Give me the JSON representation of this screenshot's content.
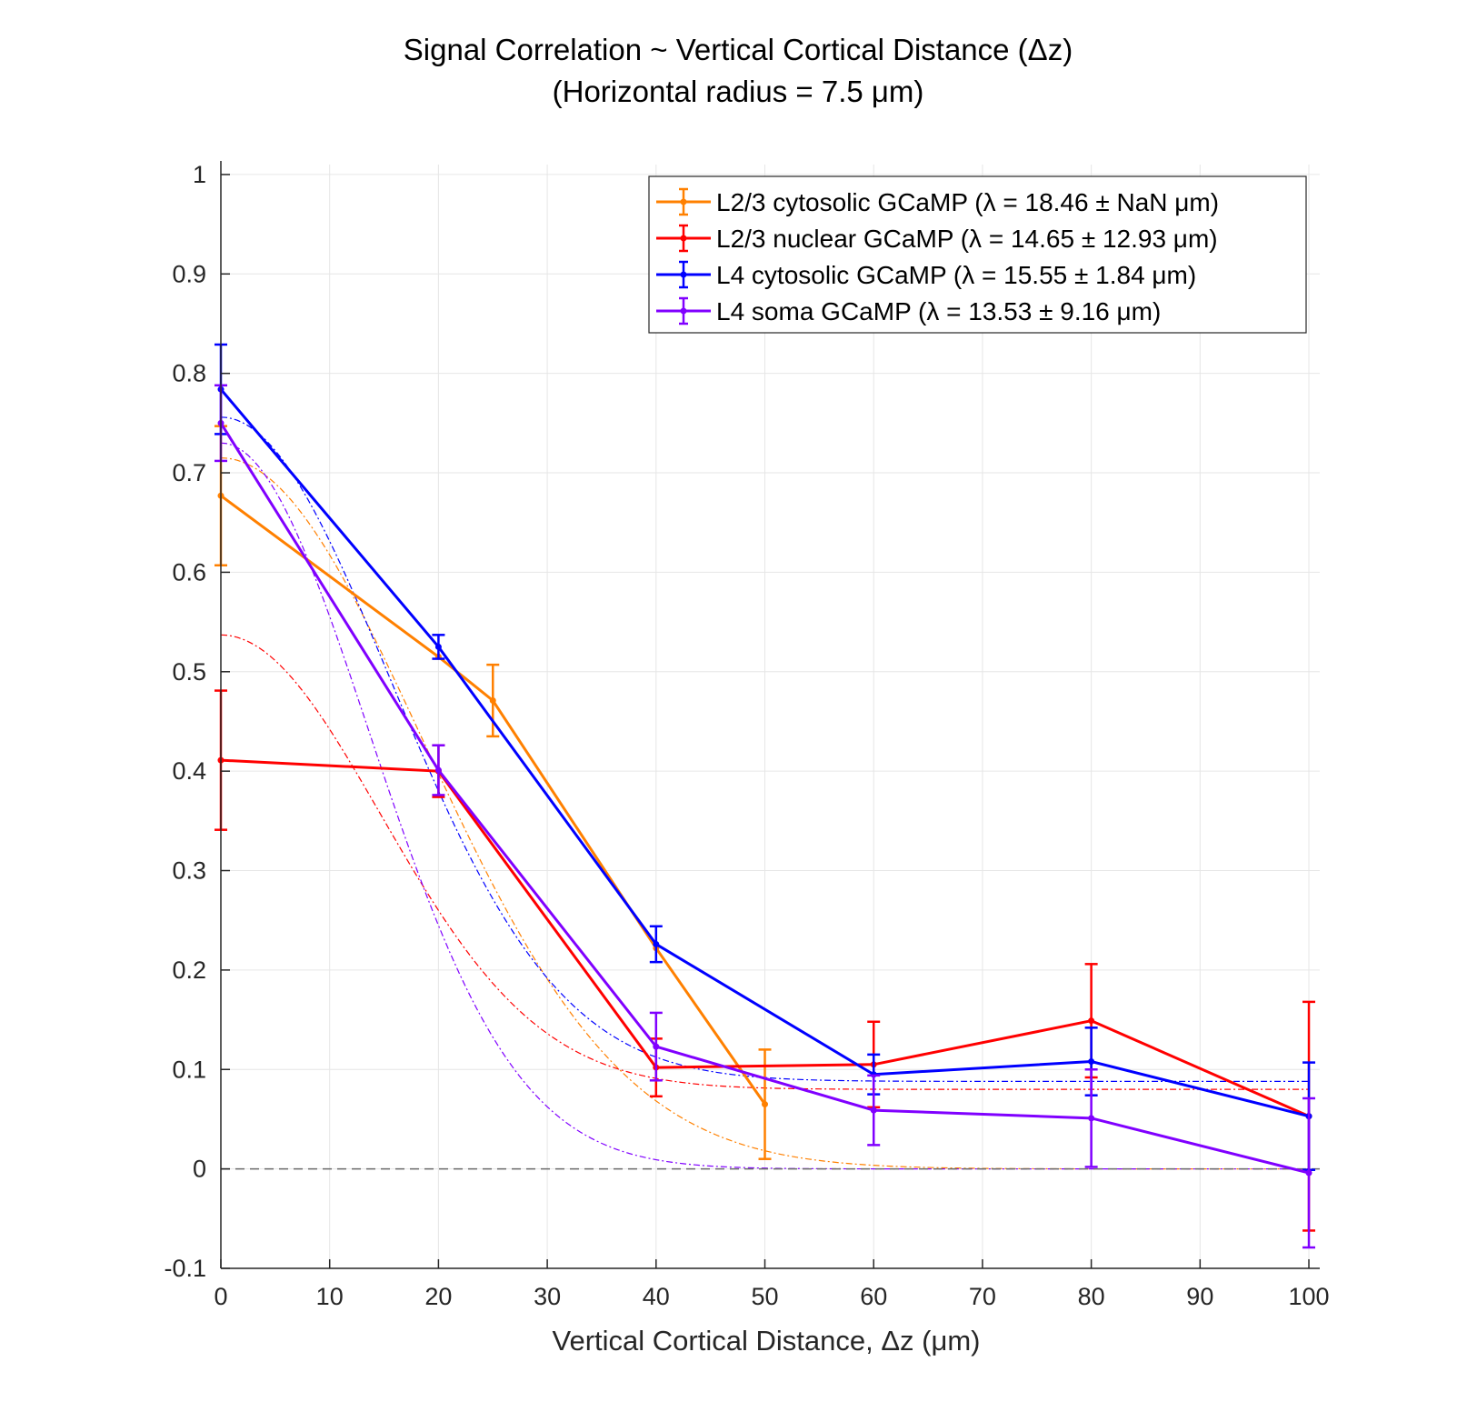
{
  "chart_data": {
    "type": "line",
    "title": "Signal Correlation ~ Vertical Cortical Distance (Δz)",
    "subtitle": "(Horizontal radius = 7.5 μm)",
    "xlabel": "Vertical Cortical Distance, Δz (μm)",
    "ylabel": "",
    "xlim": [
      0,
      101
    ],
    "ylim": [
      -0.1,
      1.01
    ],
    "xticks": [
      0,
      10,
      20,
      30,
      40,
      50,
      60,
      70,
      80,
      90,
      100
    ],
    "yticks": [
      -0.1,
      0,
      0.1,
      0.2,
      0.3,
      0.4,
      0.5,
      0.6,
      0.7,
      0.8,
      0.9,
      1
    ],
    "ytick_labels": [
      "-0.1",
      "0",
      "0.1",
      "0.2",
      "0.3",
      "0.4",
      "0.5",
      "0.6",
      "0.7",
      "0.8",
      "0.9",
      "1"
    ],
    "grid": true,
    "legend_position": "top-right",
    "zero_line": true,
    "series": [
      {
        "name": "L2/3 cytosolic GCaMP (λ = 18.46 ± NaN μm)",
        "color": "#ff8000",
        "x": [
          0,
          20,
          25,
          40,
          50
        ],
        "y": [
          0.677,
          0.515,
          0.471,
          0.222,
          0.065
        ],
        "err": [
          0.07,
          0.0,
          0.036,
          0.0,
          0.055
        ],
        "fit": {
          "a": 0.715,
          "lambda": 18.46,
          "c": 0.0
        }
      },
      {
        "name": "L2/3 nuclear GCaMP (λ = 14.65 ± 12.93 μm)",
        "color": "#ff0000",
        "x": [
          0,
          20,
          40,
          60,
          80,
          100
        ],
        "y": [
          0.411,
          0.4,
          0.102,
          0.105,
          0.149,
          0.053
        ],
        "err": [
          0.07,
          0.026,
          0.029,
          0.043,
          0.057,
          0.115
        ],
        "fit": {
          "a": 0.457,
          "lambda": 14.65,
          "c": 0.08
        }
      },
      {
        "name": "L4 cytosolic GCaMP (λ = 15.55 ± 1.84 μm)",
        "color": "#0000ff",
        "x": [
          0,
          20,
          40,
          60,
          80,
          100
        ],
        "y": [
          0.784,
          0.525,
          0.226,
          0.095,
          0.108,
          0.053
        ],
        "err": [
          0.045,
          0.012,
          0.018,
          0.02,
          0.034,
          0.054
        ],
        "fit": {
          "a": 0.668,
          "lambda": 15.55,
          "c": 0.088
        }
      },
      {
        "name": "L4 soma GCaMP (λ = 13.53 ± 9.16 μm)",
        "color": "#8000ff",
        "x": [
          0,
          20,
          40,
          60,
          80,
          100
        ],
        "y": [
          0.75,
          0.401,
          0.123,
          0.059,
          0.051,
          -0.004
        ],
        "err": [
          0.038,
          0.025,
          0.034,
          0.035,
          0.049,
          0.075
        ],
        "fit": {
          "a": 0.73,
          "lambda": 13.53,
          "c": 0.0
        }
      }
    ]
  }
}
